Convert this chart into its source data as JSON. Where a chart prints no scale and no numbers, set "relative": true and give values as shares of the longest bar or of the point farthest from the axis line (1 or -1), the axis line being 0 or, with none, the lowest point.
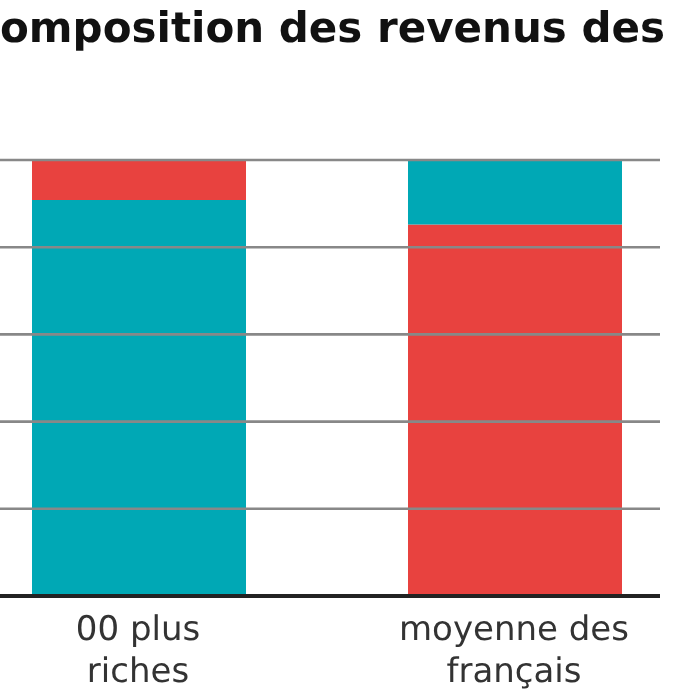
{
  "chart_data": {
    "type": "bar",
    "title": "omposition des revenus des",
    "categories": [
      "00 plus riches",
      "moyenne des français"
    ],
    "stacked": true,
    "relative": true,
    "legend": false,
    "series": [
      {
        "color": "#00a8b5",
        "values": [
          0.908,
          0
        ]
      },
      {
        "color": "#e8423f",
        "values": [
          0.092,
          0.852
        ]
      },
      {
        "color": "#00a8b5",
        "values": [
          0,
          0.148
        ]
      }
    ],
    "ref_lines": [
      {
        "axis": "y",
        "value": 0.2,
        "color": "#888888"
      },
      {
        "axis": "y",
        "value": 0.4,
        "color": "#888888"
      },
      {
        "axis": "y",
        "value": 0.6,
        "color": "#888888"
      },
      {
        "axis": "y",
        "value": 0.8,
        "color": "#888888"
      },
      {
        "axis": "y",
        "value": 1,
        "color": "#888888"
      }
    ]
  }
}
